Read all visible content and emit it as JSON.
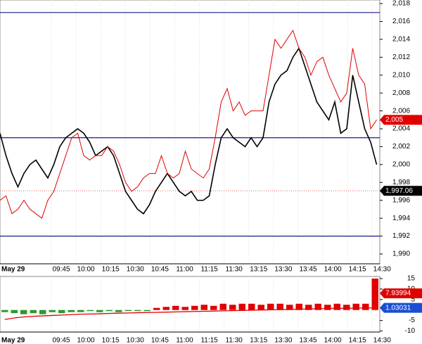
{
  "chart_data": [
    {
      "type": "line",
      "x_labels": [
        "May 29",
        "09:45",
        "10:00",
        "10:15",
        "10:30",
        "10:45",
        "11:00",
        "11:15",
        "11:30",
        "13:15",
        "13:30",
        "13:45",
        "14:00",
        "14:15",
        "14:30"
      ],
      "ylim": [
        1988.9,
        2018.4
      ],
      "yticks": [
        {
          "value": 2018,
          "label": "2,018"
        },
        {
          "value": 2016,
          "label": "2,016"
        },
        {
          "value": 2014,
          "label": "2,014"
        },
        {
          "value": 2012,
          "label": "2,012"
        },
        {
          "value": 2010,
          "label": "2,010"
        },
        {
          "value": 2008,
          "label": "2,008"
        },
        {
          "value": 2006,
          "label": "2,006"
        },
        {
          "value": 2004,
          "label": "2,004"
        },
        {
          "value": 2002,
          "label": "2,002"
        },
        {
          "value": 2000,
          "label": "2,000"
        },
        {
          "value": 1998,
          "label": "1,998"
        },
        {
          "value": 1996,
          "label": "1,996"
        },
        {
          "value": 1994,
          "label": "1,994"
        },
        {
          "value": 1992,
          "label": "1,992"
        },
        {
          "value": 1990,
          "label": "1,990"
        }
      ],
      "series": [
        {
          "color": "#000000",
          "values": [
            2003.5,
            2001,
            1999,
            1997.5,
            1999,
            2000,
            2000.5,
            1999.5,
            1998.5,
            2000,
            2002,
            2003,
            2003.5,
            2004,
            2003.5,
            2002.5,
            2001,
            2001.5,
            2002,
            2001,
            1999,
            1997,
            1996,
            1995,
            1994.5,
            1995.5,
            1997,
            1998,
            1999,
            1998,
            1997,
            1996.5,
            1997,
            1996,
            1996,
            1996.5,
            2000,
            2003,
            2004,
            2003,
            2002.5,
            2002,
            2003,
            2002,
            2003,
            2007,
            2009,
            2010,
            2010.5,
            2012,
            2013,
            2011,
            2009,
            2007,
            2006,
            2005,
            2007,
            2003.5,
            2004,
            2010,
            2007,
            2004,
            2002.5,
            2000
          ]
        },
        {
          "color": "#e00000",
          "values": [
            1996,
            1996.5,
            1994.5,
            1995,
            1996,
            1995,
            1994.5,
            1994,
            1996,
            1997,
            1999,
            2001,
            2003,
            2003.5,
            2001,
            2000.5,
            2001,
            2001,
            2002,
            2001.5,
            2000,
            1998,
            1997,
            1997.5,
            1998.5,
            1999,
            1999,
            2001,
            1999,
            1998.5,
            1999,
            2001.5,
            1999.5,
            1999,
            1998.5,
            1999.5,
            2003,
            2007,
            2008.5,
            2006,
            2007,
            2005.5,
            2006,
            2006,
            2006,
            2010,
            2014,
            2013,
            2014,
            2015,
            2013,
            2012,
            2010,
            2011.5,
            2012,
            2010,
            2008.5,
            2007,
            2008,
            2013,
            2010,
            2009,
            2004,
            2005
          ]
        }
      ],
      "hlines": [
        {
          "value": 2017,
          "color": "#1a1a8c"
        },
        {
          "value": 2003,
          "color": "#1a1a8c"
        },
        {
          "value": 1992,
          "color": "#1a1a8c"
        },
        {
          "value": 1997.06,
          "color": "#e06060"
        }
      ],
      "markers": [
        {
          "value": 2005,
          "label": "2,005",
          "color": "#e00000"
        },
        {
          "value": 1997.06,
          "label": "1,997.06",
          "color": "#000000"
        }
      ]
    },
    {
      "type": "bar",
      "x_labels": [
        "May 29",
        "09:45",
        "10:00",
        "10:15",
        "10:30",
        "10:45",
        "11:00",
        "11:15",
        "11:30",
        "13:15",
        "13:30",
        "13:45",
        "14:00",
        "14:15",
        "14:30"
      ],
      "ylim": [
        -10.5,
        16
      ],
      "yticks": [
        15,
        10,
        5,
        -5,
        -10
      ],
      "values": [
        -1,
        -1.5,
        -2,
        -1.5,
        -2,
        -1,
        -1.5,
        -1,
        -1,
        -0.5,
        -1,
        -0.5,
        -1,
        -0.5,
        -0.5,
        -0.5,
        1,
        1.5,
        2,
        1.5,
        2,
        2.5,
        2,
        3,
        2.5,
        3,
        3,
        2.5,
        3,
        3,
        2.5,
        3,
        2.5,
        3,
        2.5,
        3,
        2.5,
        3,
        3,
        15
      ],
      "positive_color": "#e00000",
      "negative_color": "#2a9a2a",
      "line": {
        "color": "#e00000",
        "values": [
          -4.5,
          -3.8,
          -3.3,
          -3,
          -2.8,
          -2.6,
          -2.4,
          -2.2,
          -2,
          -1.9,
          -1.8,
          -1.6,
          -1.5,
          -1.4,
          -1.3,
          -1.2,
          -1.1,
          -1,
          -0.9,
          -0.8,
          -0.7,
          -0.6,
          -0.5,
          -0.4,
          -0.3,
          -0.2,
          -0.1,
          0,
          0.1,
          0.2,
          0.3,
          0.4,
          0.5,
          0.6,
          0.7,
          0.8,
          0.85,
          0.9,
          1,
          1.03
        ]
      },
      "markers": [
        {
          "value": 7.93994,
          "label": "7.93994",
          "color": "#e00000"
        },
        {
          "value": 1.03031,
          "label": "1.03031",
          "color": "#1a4fd0"
        }
      ]
    }
  ]
}
